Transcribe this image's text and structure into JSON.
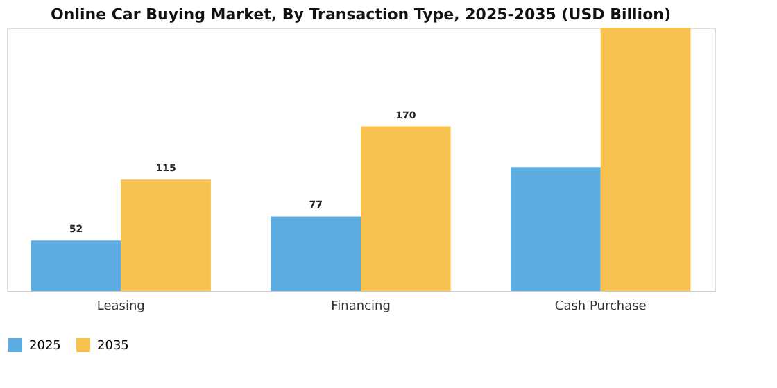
{
  "chart_data": {
    "type": "bar",
    "title": "Online Car Buying Market, By Transaction Type, 2025-2035 (USD Billion)",
    "categories": [
      "Leasing",
      "Financing",
      "Cash Purchase"
    ],
    "series": [
      {
        "name": "2025",
        "color": "#5dade2",
        "values": [
          52,
          77,
          128
        ],
        "value_labels": [
          "52",
          "77",
          null
        ]
      },
      {
        "name": "2035",
        "color": "#f7c24f",
        "values": [
          115,
          170,
          272
        ],
        "value_labels": [
          "115",
          "170",
          null
        ]
      }
    ],
    "legend": "bottom",
    "grid": false
  }
}
